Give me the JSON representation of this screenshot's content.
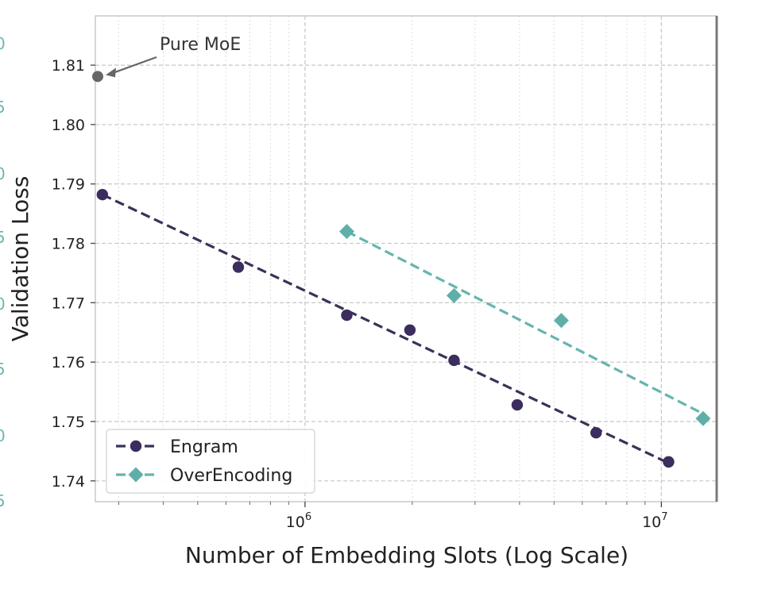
{
  "chart_data": {
    "type": "scatter",
    "title": "",
    "xlabel": "Number of Embedding Slots (Log Scale)",
    "ylabel": "Validation Loss",
    "xscale": "log",
    "xlim": [
      258000,
      14300000
    ],
    "ylim": [
      1.7365,
      1.8183
    ],
    "yticks": [
      1.74,
      1.75,
      1.76,
      1.77,
      1.78,
      1.79,
      1.8,
      1.81
    ],
    "ytick_labels": [
      "1.74",
      "1.75",
      "1.76",
      "1.77",
      "1.78",
      "1.79",
      "1.80",
      "1.81"
    ],
    "xticks": [
      1000000,
      10000000
    ],
    "xtick_labels": [
      {
        "base": "10",
        "exp": "6"
      },
      {
        "base": "10",
        "exp": "7"
      }
    ],
    "grid": true,
    "legend_position": "bottom-left",
    "series": [
      {
        "name": "Engram",
        "marker": "circle",
        "color": "#3b2d5e",
        "line_color": "#3b3158",
        "points": [
          {
            "x": 270000,
            "y": 1.7882
          },
          {
            "x": 650000,
            "y": 1.776
          },
          {
            "x": 1310000,
            "y": 1.7679
          },
          {
            "x": 1970000,
            "y": 1.7654
          },
          {
            "x": 2620000,
            "y": 1.7603
          },
          {
            "x": 3940000,
            "y": 1.7528
          },
          {
            "x": 6560000,
            "y": 1.7481
          },
          {
            "x": 10480000,
            "y": 1.7432
          }
        ],
        "fit": [
          {
            "x": 270000,
            "y": 1.7882
          },
          {
            "x": 10480000,
            "y": 1.743
          }
        ]
      },
      {
        "name": "OverEncoding",
        "marker": "diamond",
        "color": "#5fafa8",
        "line_color": "#65b5ad",
        "points": [
          {
            "x": 1310000,
            "y": 1.782
          },
          {
            "x": 2620000,
            "y": 1.7712
          },
          {
            "x": 5240000,
            "y": 1.767
          },
          {
            "x": 13100000,
            "y": 1.7505
          }
        ],
        "fit": [
          {
            "x": 1310000,
            "y": 1.782
          },
          {
            "x": 13100000,
            "y": 1.7513
          }
        ]
      }
    ],
    "baseline": {
      "label": "Pure MoE",
      "x": 258000,
      "y": 1.8081,
      "color": "#666666"
    },
    "annotations": [
      {
        "text": "Pure MoE",
        "target": "baseline"
      }
    ]
  }
}
